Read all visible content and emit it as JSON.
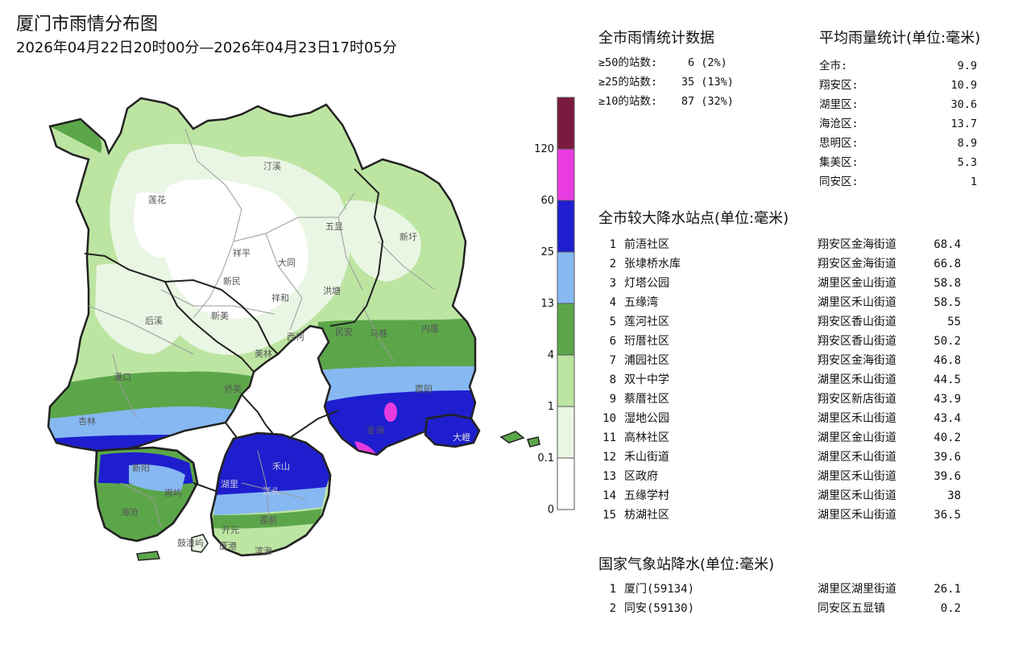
{
  "header": {
    "title": "厦门市雨情分布图",
    "subtitle": "2026年04月22日20时00分—2026年04月23日17时05分"
  },
  "legend": {
    "ticks": [
      "120",
      "60",
      "25",
      "13",
      "4",
      "1",
      "0.1",
      "0"
    ],
    "colors": [
      "#7a1a3e",
      "#e93ce0",
      "#1e1ecf",
      "#86b8f2",
      "#5ca64a",
      "#bde5a2",
      "#eaf6e4",
      "#ffffff"
    ]
  },
  "city_stats": {
    "title": "全市雨情统计数据",
    "rows": [
      {
        "label": "≥50的站数:",
        "count": "6",
        "pct": "(2%)"
      },
      {
        "label": "≥25的站数:",
        "count": "35",
        "pct": "(13%)"
      },
      {
        "label": "≥10的站数:",
        "count": "87",
        "pct": "(32%)"
      }
    ]
  },
  "avg_rain": {
    "title": "平均雨量统计(单位:毫米)",
    "rows": [
      {
        "district": "全市:",
        "value": "9.9"
      },
      {
        "district": "翔安区:",
        "value": "10.9"
      },
      {
        "district": "湖里区:",
        "value": "30.6"
      },
      {
        "district": "海沧区:",
        "value": "13.7"
      },
      {
        "district": "思明区:",
        "value": "8.9"
      },
      {
        "district": "集美区:",
        "value": "5.3"
      },
      {
        "district": "同安区:",
        "value": "1"
      }
    ]
  },
  "top_stations": {
    "title": "全市较大降水站点(单位:毫米)",
    "rows": [
      {
        "rank": "1",
        "name": "前浯社区",
        "location": "翔安区金海街道",
        "value": "68.4"
      },
      {
        "rank": "2",
        "name": "张埭桥水库",
        "location": "翔安区金海街道",
        "value": "66.8"
      },
      {
        "rank": "3",
        "name": "灯塔公园",
        "location": "湖里区金山街道",
        "value": "58.8"
      },
      {
        "rank": "4",
        "name": "五缘湾",
        "location": "湖里区禾山街道",
        "value": "58.5"
      },
      {
        "rank": "5",
        "name": "莲河社区",
        "location": "翔安区香山街道",
        "value": "55"
      },
      {
        "rank": "6",
        "name": "珩厝社区",
        "location": "翔安区香山街道",
        "value": "50.2"
      },
      {
        "rank": "7",
        "name": "浦园社区",
        "location": "翔安区金海街道",
        "value": "46.8"
      },
      {
        "rank": "8",
        "name": "双十中学",
        "location": "湖里区禾山街道",
        "value": "44.5"
      },
      {
        "rank": "9",
        "name": "蔡厝社区",
        "location": "翔安区新店街道",
        "value": "43.9"
      },
      {
        "rank": "10",
        "name": "湿地公园",
        "location": "湖里区禾山街道",
        "value": "43.4"
      },
      {
        "rank": "11",
        "name": "高林社区",
        "location": "湖里区金山街道",
        "value": "40.2"
      },
      {
        "rank": "12",
        "name": "禾山街道",
        "location": "湖里区禾山街道",
        "value": "39.6"
      },
      {
        "rank": "13",
        "name": "区政府",
        "location": "湖里区禾山街道",
        "value": "39.6"
      },
      {
        "rank": "14",
        "name": "五缘学村",
        "location": "湖里区禾山街道",
        "value": "38"
      },
      {
        "rank": "15",
        "name": "枋湖社区",
        "location": "湖里区禾山街道",
        "value": "36.5"
      }
    ]
  },
  "national_stations": {
    "title": "国家气象站降水(单位:毫米)",
    "rows": [
      {
        "rank": "1",
        "name": "厦门(59134)",
        "location": "湖里区湖里街道",
        "value": "26.1"
      },
      {
        "rank": "2",
        "name": "同安(59130)",
        "location": "同安区五显镇",
        "value": "0.2"
      }
    ]
  },
  "map_labels": [
    "汀溪",
    "莲花",
    "五显",
    "新圩",
    "祥平",
    "大同",
    "新民",
    "洪塘",
    "祥和",
    "后溪",
    "新美",
    "民安",
    "马巷",
    "内厝",
    "西柯",
    "美林",
    "灌口",
    "金海",
    "大嶝",
    "禾山",
    "湖里",
    "江头",
    "杏林",
    "新阳",
    "海沧",
    "嵩屿",
    "鼓浪屿",
    "开元",
    "滨海",
    "厦港",
    "莲前",
    "侨英",
    "霞阳"
  ]
}
